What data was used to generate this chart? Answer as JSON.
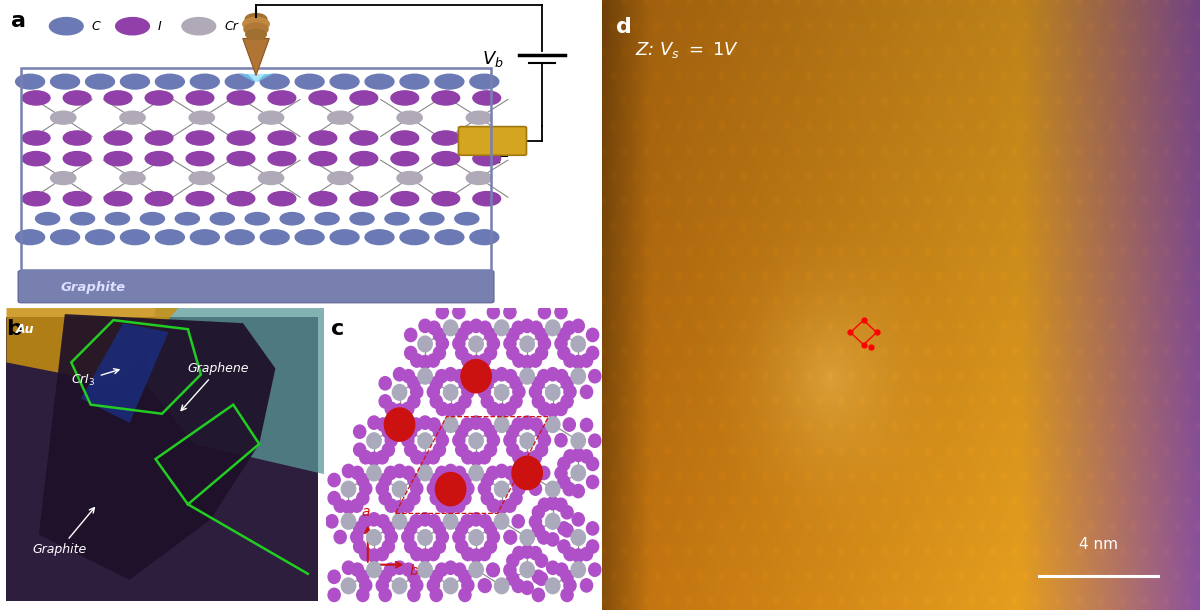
{
  "figure_width": 12.0,
  "figure_height": 6.1,
  "dpi": 100,
  "bg_color": "#ffffff",
  "panel_label_fontsize": 16,
  "panel_a": {
    "C_color": "#6b7ab5",
    "I_color": "#9040a8",
    "Cr_color": "#b0aab8",
    "legend_colors": [
      "#6b7ab5",
      "#9040a8",
      "#b0aab8"
    ],
    "legend_labels": [
      "C",
      "I",
      "Cr"
    ],
    "graphite_color": "#7880b0",
    "graphite_label_color": "#c8d0f0"
  },
  "panel_c": {
    "Cr_color": "#aaaabc",
    "I_color": "#b050c8",
    "highlight_color": "#cc1111",
    "bond_color": "#909090"
  },
  "panel_d": {
    "label_color": "#ffffff",
    "title_fontsize": 13,
    "scale_bar_color": "#ffffff"
  }
}
